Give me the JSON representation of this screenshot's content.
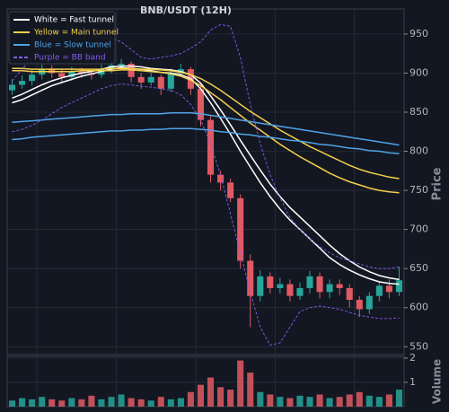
{
  "chart_data": {
    "type": "candlestick",
    "title": "BNB/USDT (12H)",
    "ylabel": "Price",
    "ylim": [
      540,
      982
    ],
    "yticks": [
      550,
      600,
      650,
      700,
      750,
      800,
      850,
      900,
      950
    ],
    "grid": true,
    "up_color": "#26a69a",
    "down_color": "#e05a63",
    "legend": "upper left",
    "open": [
      878,
      885,
      890,
      898,
      905,
      900,
      895,
      902,
      900,
      898,
      905,
      910,
      912,
      895,
      888,
      895,
      880,
      900,
      905,
      880,
      840,
      770,
      760,
      740,
      660,
      615,
      640,
      625,
      630,
      615,
      625,
      640,
      620,
      630,
      625,
      610,
      598,
      615,
      628,
      620
    ],
    "high": [
      892,
      897,
      904,
      911,
      910,
      905,
      908,
      907,
      904,
      911,
      916,
      918,
      915,
      900,
      900,
      898,
      906,
      912,
      908,
      885,
      845,
      775,
      765,
      745,
      668,
      648,
      645,
      638,
      636,
      632,
      647,
      645,
      636,
      636,
      630,
      615,
      620,
      634,
      636,
      652
    ],
    "low": [
      872,
      880,
      884,
      892,
      894,
      888,
      890,
      894,
      892,
      894,
      900,
      904,
      888,
      880,
      884,
      872,
      876,
      896,
      872,
      832,
      760,
      750,
      735,
      650,
      575,
      608,
      618,
      618,
      608,
      610,
      618,
      612,
      612,
      616,
      600,
      588,
      592,
      608,
      612,
      615
    ],
    "close": [
      885,
      890,
      898,
      905,
      900,
      895,
      902,
      900,
      898,
      905,
      910,
      912,
      895,
      888,
      895,
      880,
      900,
      905,
      880,
      840,
      770,
      760,
      740,
      660,
      615,
      640,
      625,
      630,
      615,
      625,
      640,
      620,
      630,
      625,
      610,
      598,
      615,
      628,
      620,
      635
    ],
    "overlays": [
      {
        "name": "White = Fast tunnel",
        "color": "#ffffff",
        "dashed": false,
        "lines": [
          [
            862,
            866,
            872,
            878,
            884,
            888,
            892,
            896,
            899,
            902,
            905,
            907,
            906,
            905,
            903,
            901,
            900,
            898,
            893,
            880,
            862,
            842,
            822,
            800,
            780,
            760,
            742,
            726,
            712,
            700,
            688,
            676,
            664,
            655,
            648,
            642,
            637,
            633,
            631,
            630
          ],
          [
            868,
            873,
            879,
            885,
            890,
            894,
            897,
            900,
            902,
            905,
            908,
            909,
            909,
            908,
            906,
            905,
            904,
            902,
            898,
            887,
            871,
            853,
            834,
            814,
            795,
            776,
            758,
            742,
            728,
            716,
            704,
            692,
            680,
            669,
            660,
            652,
            646,
            641,
            638,
            636
          ]
        ]
      },
      {
        "name": "Yellow = Main tunnel",
        "color": "#f5d04a",
        "dashed": false,
        "lines": [
          [
            906,
            906,
            905,
            905,
            905,
            905,
            905,
            905,
            905,
            905,
            906,
            906,
            906,
            905,
            905,
            904,
            903,
            901,
            898,
            893,
            886,
            878,
            869,
            860,
            851,
            843,
            835,
            827,
            820,
            813,
            806,
            800,
            794,
            788,
            782,
            777,
            773,
            770,
            767,
            765
          ],
          [
            903,
            903,
            902,
            902,
            902,
            902,
            902,
            903,
            903,
            903,
            903,
            904,
            904,
            903,
            902,
            901,
            899,
            896,
            891,
            884,
            875,
            866,
            856,
            846,
            836,
            827,
            818,
            809,
            801,
            793,
            786,
            779,
            772,
            766,
            761,
            757,
            753,
            750,
            748,
            747
          ]
        ]
      },
      {
        "name": "Blue = Slow tunnel",
        "color": "#4fa3e6",
        "dashed": false,
        "lines": [
          [
            837,
            838,
            839,
            840,
            841,
            842,
            843,
            844,
            845,
            846,
            847,
            847,
            848,
            848,
            848,
            848,
            849,
            849,
            849,
            848,
            846,
            844,
            842,
            840,
            838,
            836,
            834,
            832,
            830,
            828,
            826,
            824,
            822,
            820,
            818,
            816,
            814,
            812,
            810,
            808
          ],
          [
            815,
            816,
            818,
            819,
            820,
            821,
            822,
            823,
            824,
            825,
            826,
            826,
            827,
            827,
            828,
            828,
            829,
            829,
            829,
            828,
            827,
            825,
            824,
            822,
            821,
            819,
            818,
            816,
            814,
            813,
            811,
            809,
            808,
            806,
            804,
            803,
            801,
            800,
            798,
            797
          ]
        ]
      },
      {
        "name": "Purple = BB band",
        "color": "#8a5cf0",
        "dashed": true,
        "lines": [
          [
            890,
            905,
            920,
            935,
            948,
            955,
            958,
            955,
            950,
            945,
            945,
            940,
            930,
            920,
            918,
            920,
            922,
            925,
            932,
            940,
            955,
            962,
            960,
            920,
            860,
            810,
            770,
            740,
            715,
            700,
            688,
            678,
            670,
            664,
            660,
            656,
            652,
            650,
            650,
            652
          ],
          [
            825,
            828,
            833,
            840,
            848,
            856,
            862,
            868,
            874,
            880,
            884,
            886,
            885,
            883,
            882,
            880,
            878,
            872,
            860,
            840,
            810,
            770,
            720,
            670,
            620,
            575,
            552,
            555,
            575,
            595,
            600,
            602,
            600,
            598,
            594,
            590,
            588,
            586,
            586,
            587
          ]
        ]
      }
    ],
    "volume": {
      "ylabel": "Volume",
      "ylim": [
        0,
        2.07
      ],
      "yticks": [
        1,
        2
      ],
      "values": [
        0.25,
        0.35,
        0.3,
        0.4,
        0.3,
        0.25,
        0.35,
        0.3,
        0.45,
        0.3,
        0.4,
        0.5,
        0.35,
        0.3,
        0.25,
        0.4,
        0.3,
        0.35,
        0.6,
        0.9,
        1.2,
        0.8,
        0.7,
        1.9,
        1.4,
        0.6,
        0.5,
        0.4,
        0.35,
        0.45,
        0.4,
        0.5,
        0.35,
        0.4,
        0.5,
        0.6,
        0.45,
        0.4,
        0.5,
        0.7
      ]
    }
  }
}
